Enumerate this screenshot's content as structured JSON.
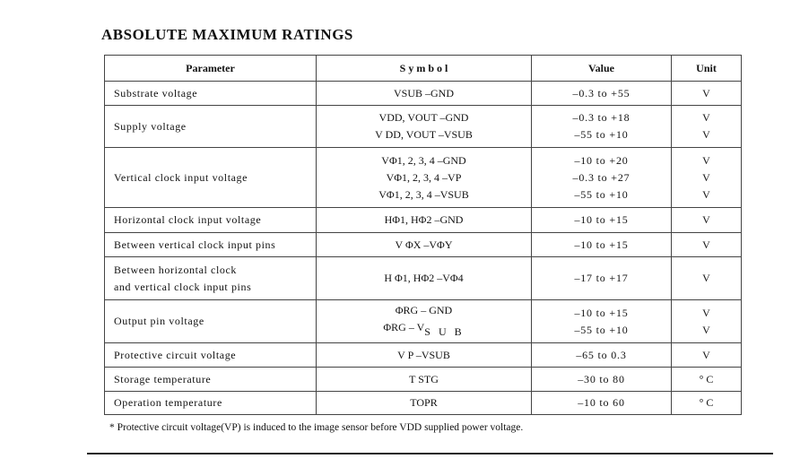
{
  "title": "ABSOLUTE MAXIMUM RATINGS",
  "table": {
    "header": [
      "Parameter",
      "S y m b o l",
      "Value",
      "Unit"
    ],
    "rows": [
      {
        "parameter": [
          "Substrate voltage"
        ],
        "symbol": [
          "VSUB –GND"
        ],
        "value": [
          "–0.3 to +55"
        ],
        "unit": [
          "V"
        ]
      },
      {
        "parameter": [
          "Supply voltage"
        ],
        "symbol": [
          "VDD, VOUT –GND",
          "V DD, VOUT –VSUB"
        ],
        "value": [
          "–0.3 to +18",
          "–55 to +10"
        ],
        "unit": [
          "V",
          "V"
        ]
      },
      {
        "parameter": [
          "Vertical clock input voltage"
        ],
        "symbol": [
          "VΦ1, 2, 3, 4 –GND",
          "VΦ1, 2, 3, 4 –VP",
          "VΦ1, 2, 3, 4 –VSUB"
        ],
        "value": [
          "–10 to +20",
          "–0.3 to +27",
          "–55 to +10"
        ],
        "unit": [
          "V",
          "V",
          "V"
        ]
      },
      {
        "parameter": [
          "Horizontal clock input voltage"
        ],
        "symbol": [
          "HΦ1, HΦ2 –GND"
        ],
        "value": [
          "–10 to +15"
        ],
        "unit": [
          "V"
        ]
      },
      {
        "parameter": [
          "Between vertical clock input pins"
        ],
        "symbol": [
          "V ΦX –VΦY"
        ],
        "value": [
          "–10 to +15"
        ],
        "unit": [
          "V"
        ]
      },
      {
        "parameter": [
          "Between horizontal clock",
          "and vertical clock input pins"
        ],
        "symbol": [
          "H Φ1, HΦ2 –VΦ4"
        ],
        "value": [
          "–17 to +17"
        ],
        "unit": [
          "V"
        ]
      },
      {
        "parameter": [
          "Output pin voltage"
        ],
        "symbol": [
          "ΦRG – GND",
          {
            "main": "ΦRG – V",
            "sub": "S U B"
          }
        ],
        "value": [
          "–10 to +15",
          "–55 to +10"
        ],
        "unit": [
          "V",
          "V"
        ]
      },
      {
        "parameter": [
          "Protective circuit voltage"
        ],
        "symbol": [
          "V P –VSUB"
        ],
        "value": [
          "–65 to 0.3"
        ],
        "unit": [
          "V"
        ]
      },
      {
        "parameter": [
          "Storage temperature"
        ],
        "symbol": [
          "T STG"
        ],
        "value": [
          "–30 to 80"
        ],
        "unit": [
          "° C"
        ]
      },
      {
        "parameter": [
          "Operation temperature"
        ],
        "symbol": [
          "TOPR"
        ],
        "value": [
          "–10 to 60"
        ],
        "unit": [
          "° C"
        ]
      }
    ]
  },
  "footnote": "* Protective circuit voltage(VP) is induced to the image sensor before VDD supplied power voltage."
}
